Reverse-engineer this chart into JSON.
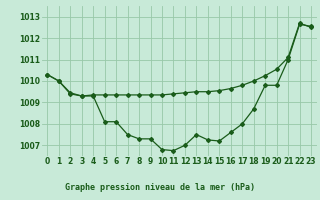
{
  "background_color": "#c8ead8",
  "plot_bg_color": "#c8ead8",
  "grid_color": "#98c8a8",
  "line_color": "#1a5c1a",
  "title": "Graphe pression niveau de la mer (hPa)",
  "ylim": [
    1006.5,
    1013.5
  ],
  "xlim": [
    -0.5,
    23.5
  ],
  "yticks": [
    1007,
    1008,
    1009,
    1010,
    1011,
    1012,
    1013
  ],
  "xticks": [
    0,
    1,
    2,
    3,
    4,
    5,
    6,
    7,
    8,
    9,
    10,
    11,
    12,
    13,
    14,
    15,
    16,
    17,
    18,
    19,
    20,
    21,
    22,
    23
  ],
  "series1": [
    1010.3,
    1010.0,
    1009.4,
    1009.3,
    1009.3,
    1008.1,
    1008.1,
    1007.5,
    1007.3,
    1007.3,
    1006.8,
    1006.75,
    1007.0,
    1007.5,
    1007.25,
    1007.2,
    1007.6,
    1008.0,
    1008.7,
    1009.8,
    1009.8,
    1011.0,
    1012.65,
    1012.55
  ],
  "series2": [
    1010.3,
    1010.0,
    1009.45,
    1009.3,
    1009.35,
    1009.35,
    1009.35,
    1009.35,
    1009.35,
    1009.35,
    1009.35,
    1009.4,
    1009.45,
    1009.5,
    1009.5,
    1009.55,
    1009.65,
    1009.8,
    1010.0,
    1010.25,
    1010.55,
    1011.1,
    1012.7,
    1012.5
  ],
  "marker_style": "D",
  "marker_size": 2.0,
  "line_width": 0.9,
  "tick_fontsize": 5.5,
  "title_fontsize": 6.0,
  "title_bg_color": "#2e8b2e",
  "title_text_color": "#ffffff"
}
